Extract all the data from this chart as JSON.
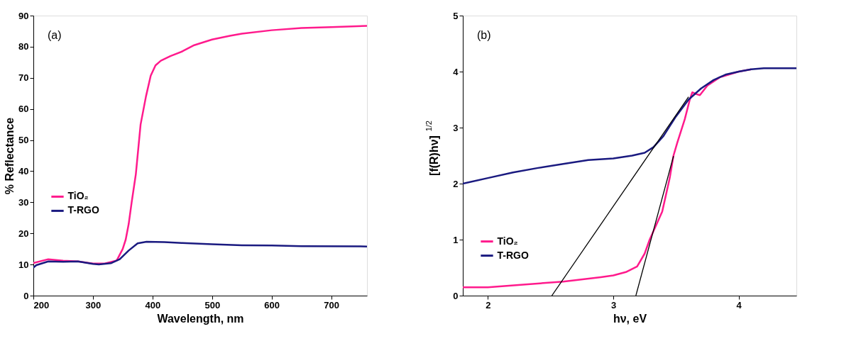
{
  "chart_data": [
    {
      "type": "line",
      "xlabel": "Wavelength, nm",
      "ylabel": "% Reflectance",
      "xlim": [
        200,
        760
      ],
      "ylim": [
        0,
        90
      ],
      "xticks": [
        200,
        300,
        400,
        500,
        600,
        700
      ],
      "yticks": [
        0,
        10,
        20,
        30,
        40,
        50,
        60,
        70,
        80,
        90
      ],
      "grid": false,
      "legend": "left",
      "annotations": [
        "(a)"
      ],
      "series": [
        {
          "name": "TiO₂",
          "color": "#ff1a8c",
          "x": [
            200,
            225,
            250,
            275,
            300,
            320,
            340,
            350,
            355,
            360,
            365,
            372,
            380,
            389,
            397,
            405,
            414,
            430,
            450,
            470,
            500,
            530,
            550,
            600,
            650,
            700,
            760
          ],
          "values": [
            10.5,
            11.7,
            11.2,
            11,
            10.3,
            10.3,
            11.3,
            15,
            18,
            23,
            30,
            39,
            55,
            64,
            70.7,
            74,
            75.5,
            77,
            78.5,
            80.5,
            82.3,
            83.5,
            84.2,
            85.3,
            86,
            86.3,
            86.7
          ]
        },
        {
          "name": "T-RGO",
          "color": "#1a1a80",
          "x": [
            200,
            205,
            225,
            250,
            275,
            300,
            310,
            330,
            345,
            360,
            375,
            390,
            420,
            450,
            500,
            550,
            600,
            650,
            760
          ],
          "values": [
            9,
            9.8,
            11,
            10.9,
            11,
            10.2,
            10,
            10.4,
            11.7,
            14.5,
            16.8,
            17.3,
            17.2,
            16.9,
            16.5,
            16.2,
            16.1,
            15.9,
            15.8
          ]
        }
      ]
    },
    {
      "type": "line",
      "xlabel": "hν, eV",
      "ylabel": "[f(R)hν]$^{1/2}$",
      "xlim": [
        1.8,
        4.46
      ],
      "ylim": [
        0,
        5
      ],
      "xticks": [
        2,
        3,
        4
      ],
      "yticks": [
        0,
        1,
        2,
        3,
        4,
        5
      ],
      "grid": false,
      "legend": "bottom left",
      "annotations": [
        "(b)"
      ],
      "series": [
        {
          "name": "TiO₂",
          "color": "#ff1a8c",
          "x": [
            1.8,
            2.0,
            2.3,
            2.6,
            2.9,
            3.0,
            3.1,
            3.19,
            3.25,
            3.29,
            3.34,
            3.39,
            3.45,
            3.48,
            3.51,
            3.57,
            3.61,
            3.63,
            3.66,
            3.69,
            3.75,
            3.85,
            4.0,
            4.1
          ],
          "values": [
            0.15,
            0.15,
            0.2,
            0.25,
            0.33,
            0.36,
            0.42,
            0.52,
            0.75,
            1.0,
            1.25,
            1.5,
            2.1,
            2.5,
            2.73,
            3.15,
            3.5,
            3.63,
            3.6,
            3.58,
            3.75,
            3.9,
            4.0,
            4.04
          ]
        },
        {
          "name": "T-RGO",
          "color": "#1a1a80",
          "x": [
            1.8,
            2.0,
            2.2,
            2.4,
            2.6,
            2.8,
            3.0,
            3.15,
            3.25,
            3.32,
            3.4,
            3.5,
            3.6,
            3.7,
            3.8,
            3.9,
            4.0,
            4.1,
            4.2,
            4.46
          ],
          "values": [
            2.0,
            2.1,
            2.2,
            2.28,
            2.35,
            2.42,
            2.45,
            2.5,
            2.55,
            2.65,
            2.85,
            3.2,
            3.5,
            3.7,
            3.85,
            3.95,
            4.0,
            4.04,
            4.06,
            4.06
          ]
        },
        {
          "type": "line",
          "color": "#000000",
          "x": [
            2.51,
            3.6
          ],
          "values": [
            0,
            3.55
          ]
        },
        {
          "type": "line",
          "color": "#000000",
          "x": [
            3.18,
            3.48
          ],
          "values": [
            0,
            2.49
          ]
        }
      ]
    }
  ]
}
